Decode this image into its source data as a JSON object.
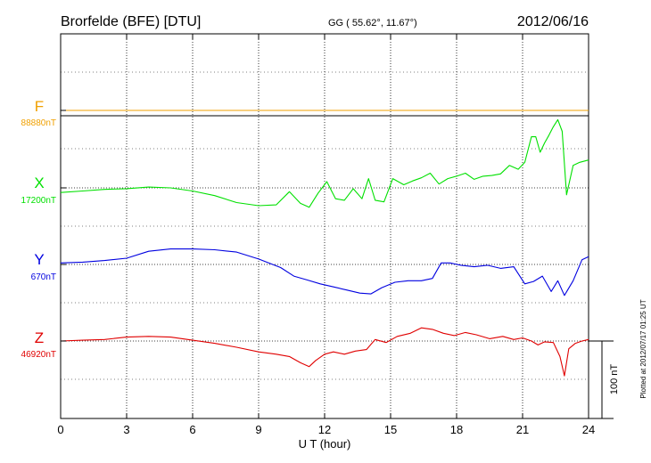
{
  "header": {
    "station": "Brorfelde (BFE)  [DTU]",
    "coords": "GG ( 55.62°,  11.67°)",
    "date": "2012/06/16"
  },
  "footer": {
    "plotted": "Plotted at 2012/07/17 01:25 UT"
  },
  "scale_bar": {
    "label": "100 nT",
    "value_nT": 100
  },
  "chart_data": {
    "type": "line",
    "xlabel": "U T (hour)",
    "xlim": [
      0,
      24
    ],
    "xticks": [
      "0",
      "3",
      "6",
      "9",
      "12",
      "15",
      "18",
      "21",
      "24"
    ],
    "grid": true,
    "series": [
      {
        "name": "F",
        "baseline_label": "88880nT",
        "color": "#f0a000",
        "x": [
          0,
          6,
          12,
          18,
          21,
          22,
          22.9,
          24
        ],
        "y": [
          0,
          0,
          0,
          0,
          0,
          0,
          0,
          0
        ]
      },
      {
        "name": "X",
        "baseline_label": "17200nT",
        "color": "#00e000",
        "x": [
          0,
          1,
          2,
          3,
          4,
          5,
          6,
          7,
          8,
          9,
          9.8,
          10.4,
          10.9,
          11.3,
          11.7,
          12.1,
          12.5,
          12.9,
          13.3,
          13.7,
          14.0,
          14.3,
          14.7,
          15.1,
          15.6,
          16.0,
          16.4,
          16.8,
          17.2,
          17.6,
          18.0,
          18.4,
          18.8,
          19.2,
          19.6,
          20.0,
          20.4,
          20.8,
          21.1,
          21.4,
          21.6,
          21.8,
          22.0,
          22.2,
          22.4,
          22.6,
          22.8,
          23.0,
          23.3,
          23.6,
          24.0
        ],
        "y": [
          -6,
          -4,
          -2,
          -1,
          1,
          0,
          -4,
          -10,
          -19,
          -23,
          -22,
          -5,
          -20,
          -25,
          -7,
          8,
          -14,
          -16,
          -1,
          -14,
          12,
          -16,
          -18,
          12,
          4,
          9,
          13,
          19,
          5,
          12,
          15,
          19,
          11,
          15,
          16,
          18,
          29,
          24,
          33,
          66,
          66,
          46,
          58,
          68,
          79,
          88,
          73,
          -9,
          29,
          33,
          36
        ]
      },
      {
        "name": "Y",
        "baseline_label": "670nT",
        "color": "#0000e0",
        "x": [
          0,
          1,
          2,
          3,
          4,
          5,
          6,
          7,
          8,
          9,
          10,
          10.6,
          11.2,
          11.8,
          12.4,
          13.0,
          13.6,
          14.1,
          14.6,
          15.2,
          15.8,
          16.4,
          16.9,
          17.3,
          17.7,
          18.2,
          18.8,
          19.4,
          20.0,
          20.6,
          21.1,
          21.5,
          21.9,
          22.3,
          22.6,
          22.9,
          23.3,
          23.7,
          24.0
        ],
        "y": [
          2,
          3,
          5,
          8,
          17,
          20,
          20,
          19,
          16,
          7,
          -4,
          -15,
          -20,
          -25,
          -29,
          -33,
          -37,
          -38,
          -30,
          -23,
          -21,
          -21,
          -18,
          2,
          2,
          -1,
          -3,
          -1,
          -5,
          -3,
          -25,
          -22,
          -15,
          -35,
          -21,
          -40,
          -21,
          6,
          10
        ]
      },
      {
        "name": "Z",
        "baseline_label": "46920nT",
        "color": "#e00000",
        "x": [
          0,
          1,
          2,
          3,
          4,
          5,
          6,
          7,
          8,
          9,
          9.8,
          10.4,
          10.9,
          11.3,
          11.6,
          12.0,
          12.4,
          12.9,
          13.4,
          13.9,
          14.3,
          14.8,
          15.3,
          15.9,
          16.4,
          16.9,
          17.4,
          17.9,
          18.4,
          18.9,
          19.5,
          20.1,
          20.6,
          21.0,
          21.4,
          21.7,
          22.0,
          22.4,
          22.7,
          22.9,
          23.1,
          23.4,
          23.7,
          24.0
        ],
        "y": [
          0,
          1,
          2,
          5,
          6,
          5,
          1,
          -3,
          -8,
          -14,
          -17,
          -20,
          -28,
          -33,
          -25,
          -17,
          -14,
          -17,
          -13,
          -11,
          2,
          -2,
          6,
          10,
          17,
          15,
          10,
          7,
          11,
          8,
          3,
          6,
          2,
          4,
          0,
          -5,
          -1,
          -2,
          -20,
          -45,
          -10,
          -3,
          0,
          2
        ]
      }
    ]
  }
}
